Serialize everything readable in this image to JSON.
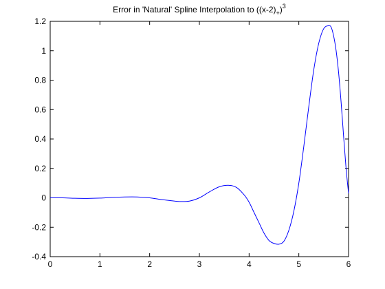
{
  "chart_data": {
    "type": "line",
    "title": {
      "main": "Error in 'Natural' Spline Interpolation to ((x-2)",
      "subscript": "+",
      "close": ")",
      "superscript": "3"
    },
    "xlabel": "",
    "ylabel": "",
    "xlim": [
      0,
      6
    ],
    "ylim": [
      -0.4,
      1.2
    ],
    "xticks": [
      0,
      1,
      2,
      3,
      4,
      5,
      6
    ],
    "xtick_labels": [
      "0",
      "1",
      "2",
      "3",
      "4",
      "5",
      "6"
    ],
    "yticks": [
      -0.4,
      -0.2,
      0,
      0.2,
      0.4,
      0.6,
      0.8,
      1,
      1.2
    ],
    "ytick_labels": [
      "-0.4",
      "-0.2",
      "0",
      "0.2",
      "0.4",
      "0.6",
      "0.8",
      "1",
      "1.2"
    ],
    "grid": false,
    "legend": "none",
    "series": [
      {
        "color": "#0000ff",
        "x": [
          0,
          0.25,
          0.5,
          0.75,
          1.0,
          1.25,
          1.5,
          1.75,
          2.0,
          2.2,
          2.4,
          2.6,
          2.8,
          3.0,
          3.2,
          3.4,
          3.6,
          3.75,
          3.9,
          4.0,
          4.1,
          4.2,
          4.3,
          4.4,
          4.5,
          4.6,
          4.7,
          4.8,
          4.9,
          5.0,
          5.1,
          5.2,
          5.3,
          5.4,
          5.5,
          5.6,
          5.65,
          5.7,
          5.75,
          5.8,
          5.85,
          5.9,
          5.95,
          6.0
        ],
        "y": [
          0,
          0,
          -0.003,
          -0.004,
          -0.002,
          0.003,
          0.006,
          0.006,
          0.0,
          -0.01,
          -0.018,
          -0.025,
          -0.022,
          0.0,
          0.04,
          0.075,
          0.085,
          0.07,
          0.02,
          -0.03,
          -0.1,
          -0.17,
          -0.24,
          -0.29,
          -0.31,
          -0.315,
          -0.295,
          -0.22,
          -0.09,
          0.1,
          0.35,
          0.62,
          0.87,
          1.05,
          1.15,
          1.17,
          1.16,
          1.1,
          1.0,
          0.85,
          0.65,
          0.42,
          0.2,
          0.03
        ]
      }
    ]
  }
}
